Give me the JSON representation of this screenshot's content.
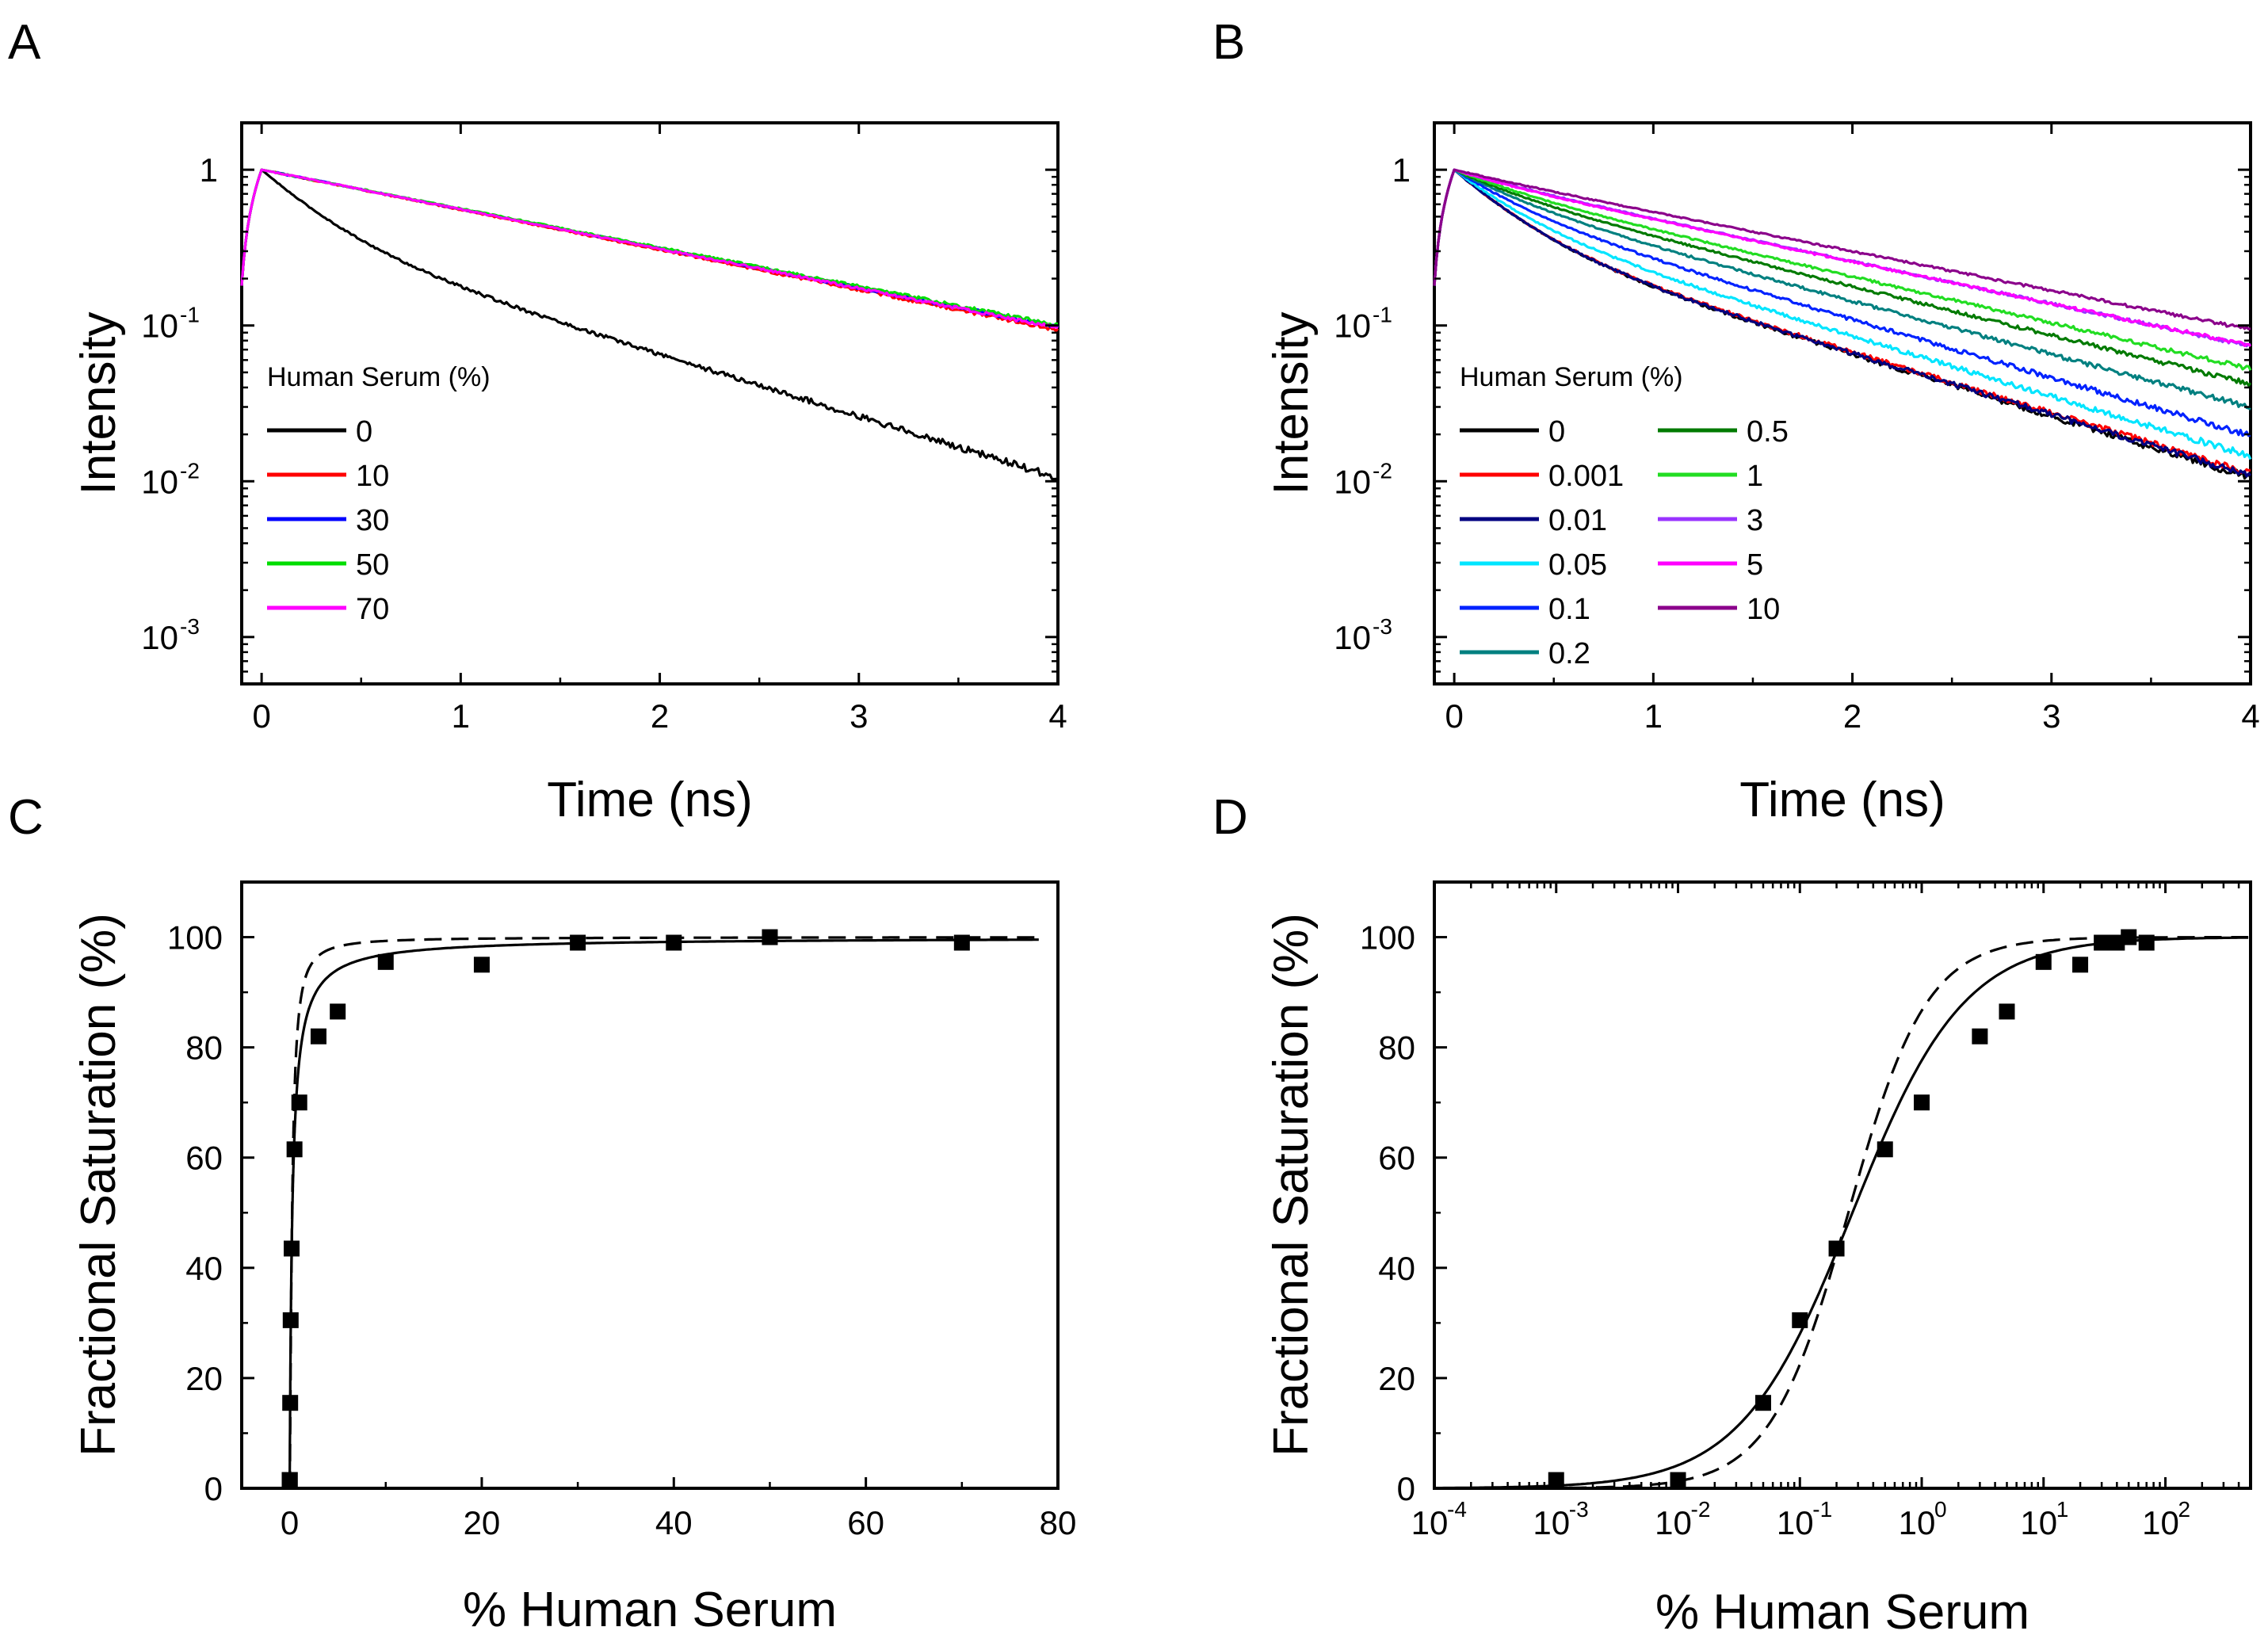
{
  "figure": {
    "panel_labels": [
      "A",
      "B",
      "C",
      "D"
    ]
  },
  "chart_data": [
    {
      "panel": "A",
      "type": "line",
      "xlabel": "Time (ns)",
      "ylabel": "Intensity",
      "xlim": [
        -0.1,
        4
      ],
      "ylim": [
        0.0005,
        2
      ],
      "yscale": "log",
      "x_ticks": [
        0,
        1,
        2,
        3,
        4
      ],
      "y_ticks": [
        {
          "value": 1,
          "base": "1",
          "exp": ""
        },
        {
          "value": 0.1,
          "base": "10",
          "exp": "-1"
        },
        {
          "value": 0.01,
          "base": "10",
          "exp": "-2"
        },
        {
          "value": 0.001,
          "base": "10",
          "exp": "-3"
        }
      ],
      "legend_title": "Human Serum (%)",
      "legend_position": "bottom-left",
      "series": [
        {
          "name": "0",
          "color": "#000000",
          "decay": {
            "a": 0.6,
            "t1": 0.28,
            "t2": 1.1
          }
        },
        {
          "name": "10",
          "color": "#ff0000",
          "decay": {
            "a": 0.0,
            "t1": 0.3,
            "t2": 1.69
          }
        },
        {
          "name": "30",
          "color": "#0000ff",
          "decay": {
            "a": 0.0,
            "t1": 0.3,
            "t2": 1.72
          }
        },
        {
          "name": "50",
          "color": "#00dd00",
          "decay": {
            "a": 0.0,
            "t1": 0.3,
            "t2": 1.74
          }
        },
        {
          "name": "70",
          "color": "#ff00ff",
          "decay": {
            "a": 0.0,
            "t1": 0.3,
            "t2": 1.71
          }
        }
      ]
    },
    {
      "panel": "B",
      "type": "line",
      "xlabel": "Time (ns)",
      "ylabel": "Intensity",
      "xlim": [
        -0.1,
        4
      ],
      "ylim": [
        0.0005,
        2
      ],
      "yscale": "log",
      "x_ticks": [
        0,
        1,
        2,
        3,
        4
      ],
      "y_ticks": [
        {
          "value": 1,
          "base": "1",
          "exp": ""
        },
        {
          "value": 0.1,
          "base": "10",
          "exp": "-1"
        },
        {
          "value": 0.01,
          "base": "10",
          "exp": "-2"
        },
        {
          "value": 0.001,
          "base": "10",
          "exp": "-3"
        }
      ],
      "legend_title": "Human Serum (%)",
      "legend_position": "bottom-left",
      "series": [
        {
          "name": "0",
          "color": "#000000",
          "decay": {
            "a": 0.6,
            "t1": 0.28,
            "t2": 1.1
          }
        },
        {
          "name": "0.001",
          "color": "#ff0000",
          "decay": {
            "a": 0.6,
            "t1": 0.28,
            "t2": 1.12
          }
        },
        {
          "name": "0.01",
          "color": "#000080",
          "decay": {
            "a": 0.6,
            "t1": 0.28,
            "t2": 1.11
          }
        },
        {
          "name": "0.05",
          "color": "#00e5ff",
          "decay": {
            "a": 0.5,
            "t1": 0.28,
            "t2": 1.13
          }
        },
        {
          "name": "0.1",
          "color": "#0022ff",
          "decay": {
            "a": 0.4,
            "t1": 0.3,
            "t2": 1.17
          }
        },
        {
          "name": "0.2",
          "color": "#008080",
          "decay": {
            "a": 0.32,
            "t1": 0.32,
            "t2": 1.28
          }
        },
        {
          "name": "0.5",
          "color": "#007a00",
          "decay": {
            "a": 0.25,
            "t1": 0.32,
            "t2": 1.39
          }
        },
        {
          "name": "1",
          "color": "#22dd22",
          "decay": {
            "a": 0.2,
            "t1": 0.33,
            "t2": 1.47
          }
        },
        {
          "name": "3",
          "color": "#9933ff",
          "decay": {
            "a": 0.1,
            "t1": 0.33,
            "t2": 1.6
          }
        },
        {
          "name": "5",
          "color": "#ff00ff",
          "decay": {
            "a": 0.12,
            "t1": 0.33,
            "t2": 1.62
          }
        },
        {
          "name": "10",
          "color": "#8b008b",
          "decay": {
            "a": 0.05,
            "t1": 0.33,
            "t2": 1.73
          }
        }
      ]
    },
    {
      "panel": "C",
      "type": "scatter",
      "xlabel": "% Human Serum",
      "ylabel": "Fractional Saturation (%)",
      "xlim": [
        -5,
        80
      ],
      "ylim": [
        0,
        110
      ],
      "xscale": "linear",
      "x_ticks": [
        0,
        20,
        40,
        60,
        80
      ],
      "y_ticks": [
        0,
        20,
        40,
        60,
        80,
        100
      ],
      "points": {
        "x": [
          0,
          0.001,
          0.01,
          0.05,
          0.1,
          0.2,
          0.5,
          1,
          3,
          5,
          10,
          20,
          30,
          40,
          50,
          70
        ],
        "y": [
          1.5,
          1.5,
          1.5,
          15.5,
          30.5,
          43.5,
          61.5,
          70,
          82,
          86.5,
          95.5,
          95,
          99,
          99,
          100,
          99
        ]
      },
      "fit_solid": {
        "model": "hill",
        "k": 0.27,
        "n": 0.95,
        "style": "solid"
      },
      "fit_dashed": {
        "model": "hill",
        "k": 0.25,
        "n": 1.35,
        "style": "dashed"
      }
    },
    {
      "panel": "D",
      "type": "scatter",
      "xlabel": "% Human Serum",
      "ylabel": "Fractional Saturation (%)",
      "xlim": [
        0.0001,
        500
      ],
      "ylim": [
        0,
        110
      ],
      "xscale": "log",
      "x_ticks": [
        {
          "value": 0.0001,
          "base": "10",
          "exp": "-4"
        },
        {
          "value": 0.001,
          "base": "10",
          "exp": "-3"
        },
        {
          "value": 0.01,
          "base": "10",
          "exp": "-2"
        },
        {
          "value": 0.1,
          "base": "10",
          "exp": "-1"
        },
        {
          "value": 1,
          "base": "10",
          "exp": "0"
        },
        {
          "value": 10,
          "base": "10",
          "exp": "1"
        },
        {
          "value": 100,
          "base": "10",
          "exp": "2"
        }
      ],
      "y_ticks": [
        0,
        20,
        40,
        60,
        80,
        100
      ],
      "points": {
        "x": [
          0.001,
          0.01,
          0.05,
          0.1,
          0.2,
          0.5,
          1,
          3,
          5,
          10,
          20,
          30,
          40,
          50,
          70
        ],
        "y": [
          1.5,
          1.5,
          15.5,
          30.5,
          43.5,
          61.5,
          70,
          82,
          86.5,
          95.5,
          95,
          99,
          99,
          100,
          99
        ]
      },
      "fit_solid": {
        "model": "hill",
        "k": 0.27,
        "n": 0.95,
        "style": "solid"
      },
      "fit_dashed": {
        "model": "hill",
        "k": 0.25,
        "n": 1.35,
        "style": "dashed"
      }
    }
  ]
}
